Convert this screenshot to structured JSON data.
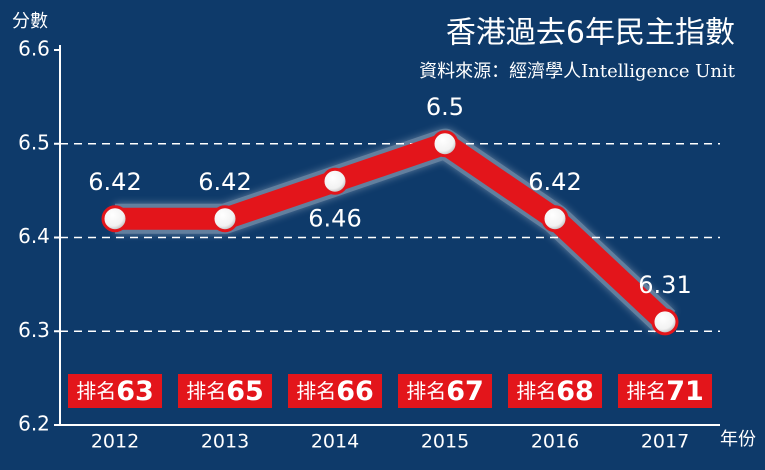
{
  "chart_data": {
    "type": "line",
    "title": "香港過去6年民主指數",
    "subtitle": "資料來源：經濟學人Intelligence Unit",
    "y_label": "分數",
    "x_label": "年份",
    "categories": [
      "2012",
      "2013",
      "2014",
      "2015",
      "2016",
      "2017"
    ],
    "series": [
      {
        "name": "民主指數",
        "color": "#e3151b",
        "values": [
          6.42,
          6.42,
          6.46,
          6.5,
          6.42,
          6.31
        ]
      }
    ],
    "rank_prefix": "排名",
    "ranks": [
      63,
      65,
      66,
      67,
      68,
      71
    ],
    "ylim": [
      6.2,
      6.6
    ],
    "yticks": [
      6.2,
      6.3,
      6.4,
      6.5,
      6.6
    ],
    "grid": true
  }
}
